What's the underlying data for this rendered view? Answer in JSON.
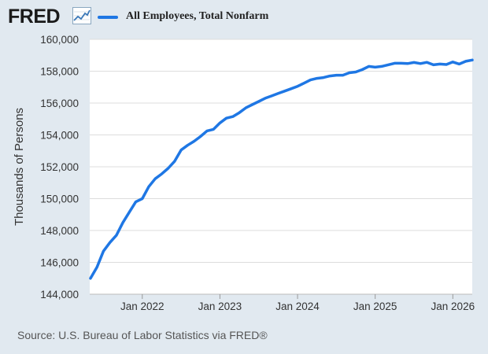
{
  "header": {
    "logo_text": "FRED",
    "logo_icon": "trend-line-icon",
    "legend_label": "All Employees, Total Nonfarm",
    "legend_color": "#1f77e4"
  },
  "source": "Source: U.S. Bureau of Labor Statistics via FRED®",
  "colors": {
    "background": "#e1e9f0",
    "plot_background": "#ffffff",
    "grid": "#dddddd",
    "line": "#1f77e4"
  },
  "chart_data": {
    "type": "line",
    "title": "All Employees, Total Nonfarm",
    "xlabel": "",
    "ylabel": "Thousands of Persons",
    "ylim": [
      144000,
      160000
    ],
    "yticks": [
      144000,
      146000,
      148000,
      150000,
      152000,
      154000,
      156000,
      158000,
      160000
    ],
    "ytick_labels": [
      "144,000",
      "146,000",
      "148,000",
      "150,000",
      "152,000",
      "154,000",
      "156,000",
      "158,000",
      "160,000"
    ],
    "xlim": [
      "2021-05",
      "2026-02"
    ],
    "xticks": [
      {
        "date": "2022-01",
        "label": "Jan 2022"
      },
      {
        "date": "2023-01",
        "label": "Jan 2023"
      },
      {
        "date": "2024-01",
        "label": "Jan 2024"
      },
      {
        "date": "2025-01",
        "label": "Jan 2025"
      },
      {
        "date": "2026-01",
        "label": "Jan 2026"
      }
    ],
    "grid": true,
    "legend": "top-left",
    "series": [
      {
        "name": "All Employees, Total Nonfarm",
        "color": "#1f77e4",
        "points": [
          [
            "2021-05",
            145000
          ],
          [
            "2021-06",
            145700
          ],
          [
            "2021-07",
            146700
          ],
          [
            "2021-08",
            147250
          ],
          [
            "2021-09",
            147700
          ],
          [
            "2021-10",
            148500
          ],
          [
            "2021-11",
            149150
          ],
          [
            "2021-12",
            149800
          ],
          [
            "2022-01",
            150000
          ],
          [
            "2022-02",
            150750
          ],
          [
            "2022-03",
            151250
          ],
          [
            "2022-04",
            151550
          ],
          [
            "2022-05",
            151900
          ],
          [
            "2022-06",
            152350
          ],
          [
            "2022-07",
            153050
          ],
          [
            "2022-08",
            153350
          ],
          [
            "2022-09",
            153600
          ],
          [
            "2022-10",
            153900
          ],
          [
            "2022-11",
            154250
          ],
          [
            "2022-12",
            154350
          ],
          [
            "2023-01",
            154750
          ],
          [
            "2023-02",
            155050
          ],
          [
            "2023-03",
            155150
          ],
          [
            "2023-04",
            155400
          ],
          [
            "2023-05",
            155700
          ],
          [
            "2023-06",
            155900
          ],
          [
            "2023-07",
            156100
          ],
          [
            "2023-08",
            156300
          ],
          [
            "2023-09",
            156450
          ],
          [
            "2023-10",
            156600
          ],
          [
            "2023-11",
            156750
          ],
          [
            "2023-12",
            156900
          ],
          [
            "2024-01",
            157050
          ],
          [
            "2024-02",
            157250
          ],
          [
            "2024-03",
            157450
          ],
          [
            "2024-04",
            157550
          ],
          [
            "2024-05",
            157600
          ],
          [
            "2024-06",
            157700
          ],
          [
            "2024-07",
            157750
          ],
          [
            "2024-08",
            157750
          ],
          [
            "2024-09",
            157900
          ],
          [
            "2024-10",
            157950
          ],
          [
            "2024-11",
            158100
          ],
          [
            "2024-12",
            158300
          ],
          [
            "2025-01",
            158250
          ],
          [
            "2025-02",
            158300
          ],
          [
            "2025-03",
            158400
          ],
          [
            "2025-04",
            158500
          ],
          [
            "2025-05",
            158500
          ],
          [
            "2025-06",
            158480
          ],
          [
            "2025-07",
            158550
          ],
          [
            "2025-08",
            158480
          ],
          [
            "2025-09",
            158560
          ],
          [
            "2025-10",
            158400
          ],
          [
            "2025-11",
            158450
          ],
          [
            "2025-12",
            158420
          ],
          [
            "2026-01",
            158580
          ],
          [
            "2026-02",
            158450
          ],
          [
            "2026-03",
            158620
          ],
          [
            "2026-04",
            158700
          ]
        ]
      }
    ]
  }
}
